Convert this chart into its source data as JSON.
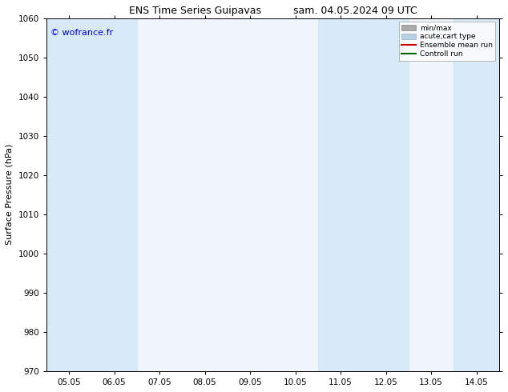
{
  "title_left": "ENS Time Series Guipavas",
  "title_right": "sam. 04.05.2024 09 UTC",
  "ylabel": "Surface Pressure (hPa)",
  "ylim": [
    970,
    1060
  ],
  "yticks": [
    970,
    980,
    990,
    1000,
    1010,
    1020,
    1030,
    1040,
    1050,
    1060
  ],
  "xtick_labels": [
    "05.05",
    "06.05",
    "07.05",
    "08.05",
    "09.05",
    "10.05",
    "11.05",
    "12.05",
    "13.05",
    "14.05"
  ],
  "xtick_positions": [
    0,
    1,
    2,
    3,
    4,
    5,
    6,
    7,
    8,
    9
  ],
  "xlim": [
    -0.5,
    9.5
  ],
  "watermark": "© wofrance.fr",
  "watermark_color": "#0000cc",
  "shaded_bands": [
    {
      "xmin": -0.5,
      "xmax": 0.5
    },
    {
      "xmin": 0.5,
      "xmax": 1.5
    },
    {
      "xmin": 5.5,
      "xmax": 6.5
    },
    {
      "xmin": 6.5,
      "xmax": 7.5
    },
    {
      "xmin": 8.5,
      "xmax": 9.5
    }
  ],
  "shaded_color": "#d8eaf8",
  "plot_bg_color": "#f0f5fc",
  "legend_entries": [
    {
      "label": "min/max",
      "color": "#aaaaaa",
      "lw": 5,
      "ls": "-"
    },
    {
      "label": "acute;cart type",
      "color": "#b8cfe4",
      "lw": 5,
      "ls": "-"
    },
    {
      "label": "Ensemble mean run",
      "color": "#cc0000",
      "lw": 1.5,
      "ls": "-"
    },
    {
      "label": "Controll run",
      "color": "#006600",
      "lw": 1.5,
      "ls": "-"
    }
  ],
  "bg_color": "#ffffff",
  "title_fontsize": 9,
  "axis_label_fontsize": 8,
  "tick_fontsize": 7.5
}
